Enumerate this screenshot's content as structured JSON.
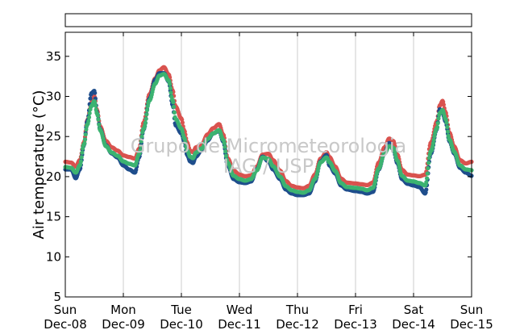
{
  "watermark": {
    "line1": "Grupo de Micrometeorologia",
    "line2": "IAG / USP"
  },
  "chart_data": {
    "type": "scatter",
    "title": "",
    "xlabel": "",
    "ylabel": "Air temperature (°C)",
    "ylim": [
      5,
      38
    ],
    "yticks": [
      5,
      10,
      15,
      20,
      25,
      30,
      35
    ],
    "xlim": [
      0,
      7
    ],
    "x_unit": "days since Sun Dec-08 00:00",
    "xticks": [
      {
        "x": 0,
        "day": "Sun",
        "date": "Dec-08"
      },
      {
        "x": 1,
        "day": "Mon",
        "date": "Dec-09"
      },
      {
        "x": 2,
        "day": "Tue",
        "date": "Dec-10"
      },
      {
        "x": 3,
        "day": "Wed",
        "date": "Dec-11"
      },
      {
        "x": 4,
        "day": "Thu",
        "date": "Dec-12"
      },
      {
        "x": 5,
        "day": "Fri",
        "date": "Dec-13"
      },
      {
        "x": 6,
        "day": "Sat",
        "date": "Dec-14"
      },
      {
        "x": 7,
        "day": "Sun",
        "date": "Dec-15"
      }
    ],
    "grid": "vertical",
    "legend": "empty box above plot",
    "series": [
      {
        "color": "#d9534f",
        "offset": 0.25,
        "points": [
          [
            0,
            21.6
          ],
          [
            0.1,
            21.5
          ],
          [
            0.18,
            21.0
          ],
          [
            0.25,
            21.8
          ],
          [
            0.32,
            24.0
          ],
          [
            0.38,
            26.8
          ],
          [
            0.45,
            29.0
          ],
          [
            0.5,
            29.8
          ],
          [
            0.55,
            28.0
          ],
          [
            0.6,
            26.0
          ],
          [
            0.7,
            24.2
          ],
          [
            0.8,
            23.4
          ],
          [
            0.9,
            23.0
          ],
          [
            1.0,
            22.4
          ],
          [
            1.1,
            22.2
          ],
          [
            1.2,
            22.0
          ],
          [
            1.27,
            23.2
          ],
          [
            1.35,
            26.5
          ],
          [
            1.45,
            30.0
          ],
          [
            1.55,
            32.0
          ],
          [
            1.62,
            33.0
          ],
          [
            1.7,
            33.4
          ],
          [
            1.78,
            32.5
          ],
          [
            1.85,
            30.5
          ],
          [
            1.9,
            28.5
          ],
          [
            2.0,
            27.0
          ],
          [
            2.05,
            25.5
          ],
          [
            2.1,
            24.0
          ],
          [
            2.15,
            23.0
          ],
          [
            2.2,
            22.8
          ],
          [
            2.25,
            23.4
          ],
          [
            2.35,
            23.8
          ],
          [
            2.45,
            25.0
          ],
          [
            2.55,
            25.8
          ],
          [
            2.65,
            26.3
          ],
          [
            2.72,
            25.0
          ],
          [
            2.8,
            22.0
          ],
          [
            2.9,
            20.5
          ],
          [
            3.0,
            20.0
          ],
          [
            3.1,
            19.8
          ],
          [
            3.2,
            19.9
          ],
          [
            3.3,
            21.0
          ],
          [
            3.4,
            22.5
          ],
          [
            3.5,
            22.6
          ],
          [
            3.58,
            21.8
          ],
          [
            3.7,
            20.5
          ],
          [
            3.8,
            19.2
          ],
          [
            3.9,
            18.6
          ],
          [
            4.0,
            18.4
          ],
          [
            4.1,
            18.3
          ],
          [
            4.2,
            18.6
          ],
          [
            4.3,
            20.0
          ],
          [
            4.4,
            22.0
          ],
          [
            4.5,
            22.8
          ],
          [
            4.55,
            22.2
          ],
          [
            4.65,
            21.0
          ],
          [
            4.75,
            19.5
          ],
          [
            4.85,
            19.0
          ],
          [
            5.0,
            18.9
          ],
          [
            5.1,
            18.8
          ],
          [
            5.2,
            18.7
          ],
          [
            5.3,
            19.0
          ],
          [
            5.4,
            21.5
          ],
          [
            5.5,
            23.4
          ],
          [
            5.58,
            24.5
          ],
          [
            5.65,
            24.2
          ],
          [
            5.72,
            22.5
          ],
          [
            5.8,
            20.6
          ],
          [
            5.9,
            20.0
          ],
          [
            6.0,
            19.9
          ],
          [
            6.1,
            19.8
          ],
          [
            6.2,
            20.0
          ],
          [
            6.3,
            24.0
          ],
          [
            6.4,
            26.6
          ],
          [
            6.45,
            28.6
          ],
          [
            6.5,
            29.2
          ],
          [
            6.55,
            27.8
          ],
          [
            6.62,
            25.2
          ],
          [
            6.7,
            23.5
          ],
          [
            6.8,
            21.8
          ],
          [
            6.9,
            21.4
          ],
          [
            7.0,
            21.6
          ]
        ]
      },
      {
        "color": "#1f4e8c",
        "offset": -0.1,
        "points": [
          [
            0,
            21.0
          ],
          [
            0.1,
            21.0
          ],
          [
            0.18,
            19.9
          ],
          [
            0.25,
            21.0
          ],
          [
            0.32,
            24.0
          ],
          [
            0.38,
            27.0
          ],
          [
            0.45,
            30.5
          ],
          [
            0.5,
            30.8
          ],
          [
            0.55,
            28.0
          ],
          [
            0.6,
            26.0
          ],
          [
            0.7,
            24.0
          ],
          [
            0.8,
            23.0
          ],
          [
            0.9,
            22.5
          ],
          [
            1.0,
            21.5
          ],
          [
            1.1,
            21.0
          ],
          [
            1.2,
            20.6
          ],
          [
            1.27,
            22.5
          ],
          [
            1.35,
            26.0
          ],
          [
            1.45,
            29.8
          ],
          [
            1.55,
            32.2
          ],
          [
            1.62,
            33.0
          ],
          [
            1.7,
            33.0
          ],
          [
            1.78,
            32.0
          ],
          [
            1.85,
            29.0
          ],
          [
            1.9,
            26.5
          ],
          [
            2.0,
            25.5
          ],
          [
            2.05,
            24.5
          ],
          [
            2.1,
            22.8
          ],
          [
            2.15,
            22.0
          ],
          [
            2.2,
            21.8
          ],
          [
            2.25,
            22.6
          ],
          [
            2.35,
            23.4
          ],
          [
            2.45,
            24.6
          ],
          [
            2.55,
            25.5
          ],
          [
            2.65,
            25.8
          ],
          [
            2.72,
            24.5
          ],
          [
            2.8,
            21.5
          ],
          [
            2.9,
            19.8
          ],
          [
            3.0,
            19.4
          ],
          [
            3.1,
            19.3
          ],
          [
            3.2,
            19.5
          ],
          [
            3.3,
            21.0
          ],
          [
            3.4,
            22.6
          ],
          [
            3.5,
            22.0
          ],
          [
            3.58,
            21.0
          ],
          [
            3.7,
            19.8
          ],
          [
            3.8,
            18.5
          ],
          [
            3.9,
            18.0
          ],
          [
            4.0,
            17.8
          ],
          [
            4.1,
            17.8
          ],
          [
            4.2,
            18.0
          ],
          [
            4.3,
            19.5
          ],
          [
            4.4,
            22.0
          ],
          [
            4.5,
            22.8
          ],
          [
            4.55,
            21.5
          ],
          [
            4.65,
            20.5
          ],
          [
            4.75,
            19.0
          ],
          [
            4.85,
            18.5
          ],
          [
            5.0,
            18.3
          ],
          [
            5.1,
            18.2
          ],
          [
            5.2,
            18.0
          ],
          [
            5.3,
            18.2
          ],
          [
            5.4,
            21.0
          ],
          [
            5.5,
            23.0
          ],
          [
            5.58,
            24.3
          ],
          [
            5.65,
            23.5
          ],
          [
            5.72,
            21.8
          ],
          [
            5.8,
            19.8
          ],
          [
            5.9,
            19.2
          ],
          [
            6.0,
            19.0
          ],
          [
            6.1,
            18.8
          ],
          [
            6.2,
            18.0
          ],
          [
            6.3,
            23.0
          ],
          [
            6.4,
            26.0
          ],
          [
            6.45,
            28.5
          ],
          [
            6.5,
            28.0
          ],
          [
            6.55,
            27.0
          ],
          [
            6.62,
            24.5
          ],
          [
            6.7,
            23.0
          ],
          [
            6.8,
            21.2
          ],
          [
            6.9,
            20.6
          ],
          [
            7.0,
            20.2
          ]
        ]
      },
      {
        "color": "#3cb371",
        "offset": 0,
        "points": [
          [
            0,
            21.2
          ],
          [
            0.1,
            21.1
          ],
          [
            0.18,
            20.5
          ],
          [
            0.25,
            21.4
          ],
          [
            0.32,
            24.0
          ],
          [
            0.38,
            26.5
          ],
          [
            0.45,
            28.8
          ],
          [
            0.5,
            29.4
          ],
          [
            0.55,
            27.8
          ],
          [
            0.6,
            25.8
          ],
          [
            0.7,
            23.8
          ],
          [
            0.8,
            23.0
          ],
          [
            0.9,
            22.6
          ],
          [
            1.0,
            21.9
          ],
          [
            1.1,
            21.6
          ],
          [
            1.2,
            21.4
          ],
          [
            1.27,
            22.8
          ],
          [
            1.35,
            26.0
          ],
          [
            1.45,
            29.5
          ],
          [
            1.55,
            31.6
          ],
          [
            1.62,
            32.6
          ],
          [
            1.7,
            32.8
          ],
          [
            1.78,
            32.0
          ],
          [
            1.85,
            29.5
          ],
          [
            1.9,
            27.2
          ],
          [
            2.0,
            26.0
          ],
          [
            2.05,
            24.8
          ],
          [
            2.1,
            23.3
          ],
          [
            2.15,
            22.5
          ],
          [
            2.2,
            22.3
          ],
          [
            2.25,
            23.0
          ],
          [
            2.35,
            23.5
          ],
          [
            2.45,
            24.7
          ],
          [
            2.55,
            25.4
          ],
          [
            2.65,
            25.8
          ],
          [
            2.72,
            24.6
          ],
          [
            2.8,
            21.7
          ],
          [
            2.9,
            20.1
          ],
          [
            3.0,
            19.7
          ],
          [
            3.1,
            19.5
          ],
          [
            3.2,
            19.7
          ],
          [
            3.3,
            20.8
          ],
          [
            3.4,
            22.4
          ],
          [
            3.5,
            22.2
          ],
          [
            3.58,
            21.3
          ],
          [
            3.7,
            20.0
          ],
          [
            3.8,
            18.8
          ],
          [
            3.9,
            18.3
          ],
          [
            4.0,
            18.1
          ],
          [
            4.1,
            18.0
          ],
          [
            4.2,
            18.3
          ],
          [
            4.3,
            19.7
          ],
          [
            4.4,
            21.8
          ],
          [
            4.5,
            22.4
          ],
          [
            4.55,
            21.8
          ],
          [
            4.65,
            20.7
          ],
          [
            4.75,
            19.2
          ],
          [
            4.85,
            18.7
          ],
          [
            5.0,
            18.6
          ],
          [
            5.1,
            18.5
          ],
          [
            5.2,
            18.3
          ],
          [
            5.3,
            18.6
          ],
          [
            5.4,
            21.0
          ],
          [
            5.5,
            22.9
          ],
          [
            5.58,
            23.8
          ],
          [
            5.65,
            23.6
          ],
          [
            5.72,
            22.0
          ],
          [
            5.8,
            20.1
          ],
          [
            5.9,
            19.5
          ],
          [
            6.0,
            19.4
          ],
          [
            6.1,
            19.2
          ],
          [
            6.2,
            18.9
          ],
          [
            6.3,
            23.2
          ],
          [
            6.4,
            26.0
          ],
          [
            6.45,
            27.9
          ],
          [
            6.5,
            28.3
          ],
          [
            6.55,
            27.2
          ],
          [
            6.62,
            24.6
          ],
          [
            6.7,
            23.1
          ],
          [
            6.8,
            21.4
          ],
          [
            6.9,
            20.9
          ],
          [
            7.0,
            20.8
          ]
        ]
      }
    ]
  }
}
